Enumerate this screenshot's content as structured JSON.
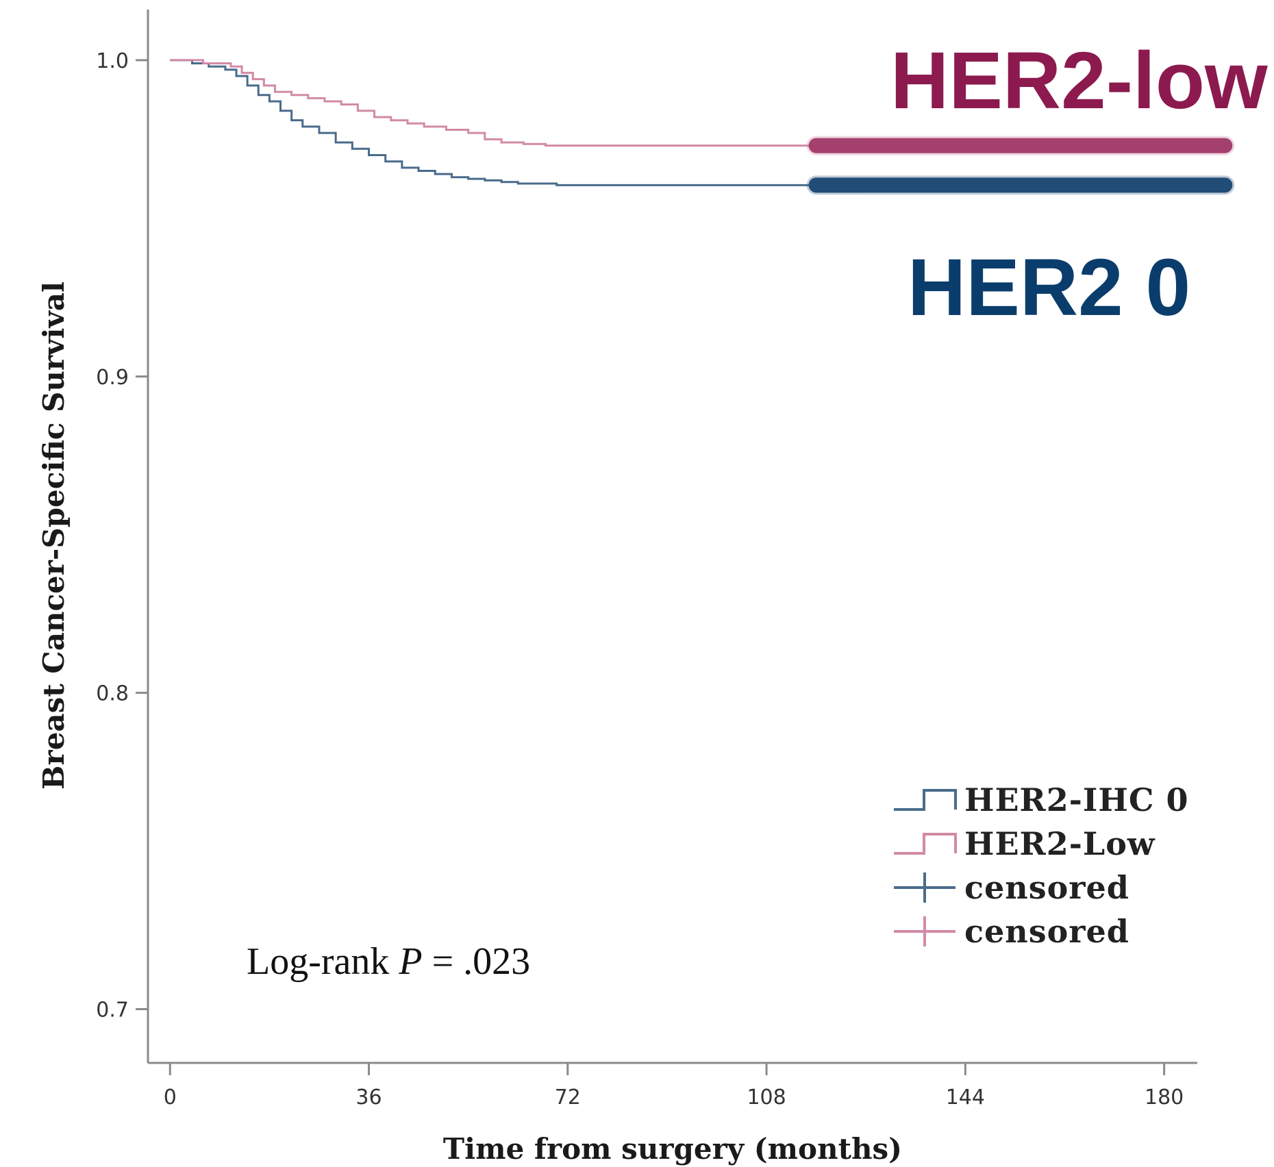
{
  "colors": {
    "her2_zero": "#4a6b8c",
    "her2_low": "#d28aa6",
    "her2_zero_bold": "#0a3d6b",
    "her2_low_bold": "#8c1a4f",
    "axis": "#8a8a8a"
  },
  "callouts": {
    "her2_low": "HER2-low",
    "her2_zero": "HER2 0"
  },
  "annotation": {
    "prefix": "Log-rank ",
    "p_symbol": "P",
    "suffix": " = .023"
  },
  "legend": {
    "items": [
      {
        "label": "HER2-IHC 0",
        "kind": "step",
        "series": 0
      },
      {
        "label": "HER2-Low",
        "kind": "step",
        "series": 1
      },
      {
        "label": "censored",
        "kind": "cross",
        "series": 0
      },
      {
        "label": "censored",
        "kind": "cross",
        "series": 1
      }
    ],
    "position": "bottom-right"
  },
  "chart_data": {
    "type": "line",
    "subtype": "kaplan-meier",
    "title": "",
    "xlabel": "Time from surgery (months)",
    "ylabel": "Breast Cancer-Specific Survival",
    "xlim": [
      -4,
      186
    ],
    "ylim": [
      0.683,
      1.016
    ],
    "xticks": [
      0,
      36,
      72,
      108,
      144,
      180
    ],
    "xtick_labels": [
      "0",
      "36",
      "72",
      "108",
      "144",
      "180"
    ],
    "yticks": [
      0.7,
      0.8,
      0.9,
      1.0
    ],
    "ytick_labels": [
      "0.7",
      "0.8",
      "0.9",
      "1.0"
    ],
    "grid": false,
    "series": [
      {
        "name": "HER2-IHC 0",
        "color_key": "her2_zero",
        "points": [
          [
            0,
            1.0
          ],
          [
            2,
            1.0
          ],
          [
            4,
            0.999
          ],
          [
            7,
            0.998
          ],
          [
            10,
            0.997
          ],
          [
            12,
            0.995
          ],
          [
            14,
            0.992
          ],
          [
            16,
            0.989
          ],
          [
            18,
            0.987
          ],
          [
            20,
            0.984
          ],
          [
            22,
            0.981
          ],
          [
            24,
            0.979
          ],
          [
            27,
            0.977
          ],
          [
            30,
            0.974
          ],
          [
            33,
            0.972
          ],
          [
            36,
            0.97
          ],
          [
            39,
            0.968
          ],
          [
            42,
            0.966
          ],
          [
            45,
            0.965
          ],
          [
            48,
            0.964
          ],
          [
            51,
            0.963
          ],
          [
            54,
            0.9625
          ],
          [
            57,
            0.962
          ],
          [
            60,
            0.9615
          ],
          [
            63,
            0.961
          ],
          [
            66,
            0.961
          ],
          [
            70,
            0.9605
          ],
          [
            185,
            0.9605
          ]
        ],
        "censored_dense_from": 117,
        "censored_dense_to": 191
      },
      {
        "name": "HER2-Low",
        "color_key": "her2_low",
        "points": [
          [
            0,
            1.0
          ],
          [
            3,
            1.0
          ],
          [
            6,
            0.999
          ],
          [
            9,
            0.999
          ],
          [
            11,
            0.998
          ],
          [
            13,
            0.996
          ],
          [
            15,
            0.994
          ],
          [
            17,
            0.992
          ],
          [
            19,
            0.99
          ],
          [
            22,
            0.989
          ],
          [
            25,
            0.988
          ],
          [
            28,
            0.987
          ],
          [
            31,
            0.986
          ],
          [
            34,
            0.984
          ],
          [
            37,
            0.982
          ],
          [
            40,
            0.981
          ],
          [
            43,
            0.98
          ],
          [
            46,
            0.979
          ],
          [
            50,
            0.978
          ],
          [
            54,
            0.977
          ],
          [
            57,
            0.975
          ],
          [
            60,
            0.974
          ],
          [
            64,
            0.9735
          ],
          [
            68,
            0.973
          ],
          [
            72,
            0.973
          ],
          [
            185,
            0.973
          ]
        ],
        "censored_dense_from": 117,
        "censored_dense_to": 191
      }
    ]
  }
}
